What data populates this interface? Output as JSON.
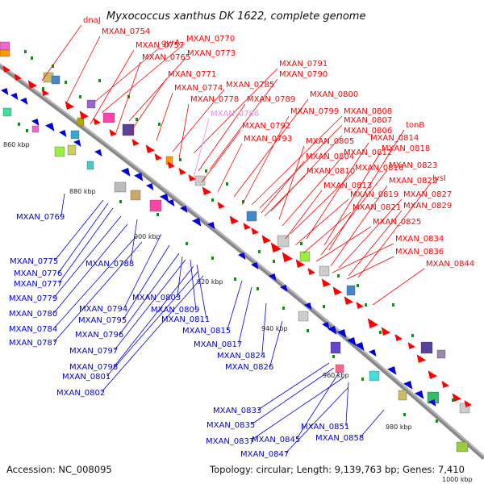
{
  "title": "Myxococcus xanthus DK 1622, complete genome",
  "footer": {
    "accession": "Accession: NC_008095",
    "summary": "Topology: circular; Length: 9,139,763 bp; Genes: 7,410",
    "cutoff": "1000 kbp"
  },
  "colors": {
    "forward": "#ff0000",
    "reverse": "#0000dd",
    "highlight": "#ee88ee",
    "backbone": "#888888",
    "tick": "#1a8a1a"
  },
  "kbp_ticks": [
    "860 kbp",
    "880 kbp",
    "900 kbp",
    "920 kbp",
    "940 kbp",
    "960 kbp",
    "980 kbp"
  ],
  "forward_labels": [
    "dnaJ",
    "MXAN_0754",
    "MXAN_0757",
    "gyrA",
    "MXAN_0770",
    "MXAN_0765",
    "MXAN_0773",
    "MXAN_0771",
    "MXAN_0791",
    "MXAN_0790",
    "MXAN_0774",
    "MXAN_0785",
    "MXAN_0800",
    "MXAN_0778",
    "MXAN_0789",
    "MXAN_0799",
    "MXAN_0808",
    "MXAN_0786",
    "MXAN_0807",
    "MXAN_0792",
    "MXAN_0806",
    "tonB",
    "MXAN_0793",
    "MXAN_0805",
    "MXAN_0814",
    "MXAN_0812",
    "MXAN_0818",
    "MXAN_0804",
    "MXAN_0823",
    "MXAN_0816",
    "MXAN_0810",
    "MXAN_0822",
    "lysI",
    "MXAN_0813",
    "MXAN_0819",
    "MXAN_0827",
    "MXAN_0821",
    "MXAN_0829",
    "MXAN_0825",
    "MXAN_0834",
    "MXAN_0836",
    "MXAN_0844"
  ],
  "reverse_labels": [
    "MXAN_0769",
    "MXAN_0775",
    "MXAN_0788",
    "MXAN_0776",
    "MXAN_0777",
    "MXAN_0779",
    "MXAN_0803",
    "MXAN_0794",
    "MXAN_0780",
    "MXAN_0809",
    "MXAN_0795",
    "MXAN_0784",
    "MXAN_0811",
    "MXAN_0796",
    "MXAN_0815",
    "MXAN_0787",
    "MXAN_0797",
    "MXAN_0817",
    "MXAN_0798",
    "MXAN_0824",
    "MXAN_0801",
    "MXAN_0826",
    "MXAN_0802",
    "MXAN_0833",
    "MXAN_0835",
    "MXAN_0851",
    "MXAN_0845",
    "MXAN_0837",
    "MXAN_0858",
    "MXAN_0847"
  ]
}
